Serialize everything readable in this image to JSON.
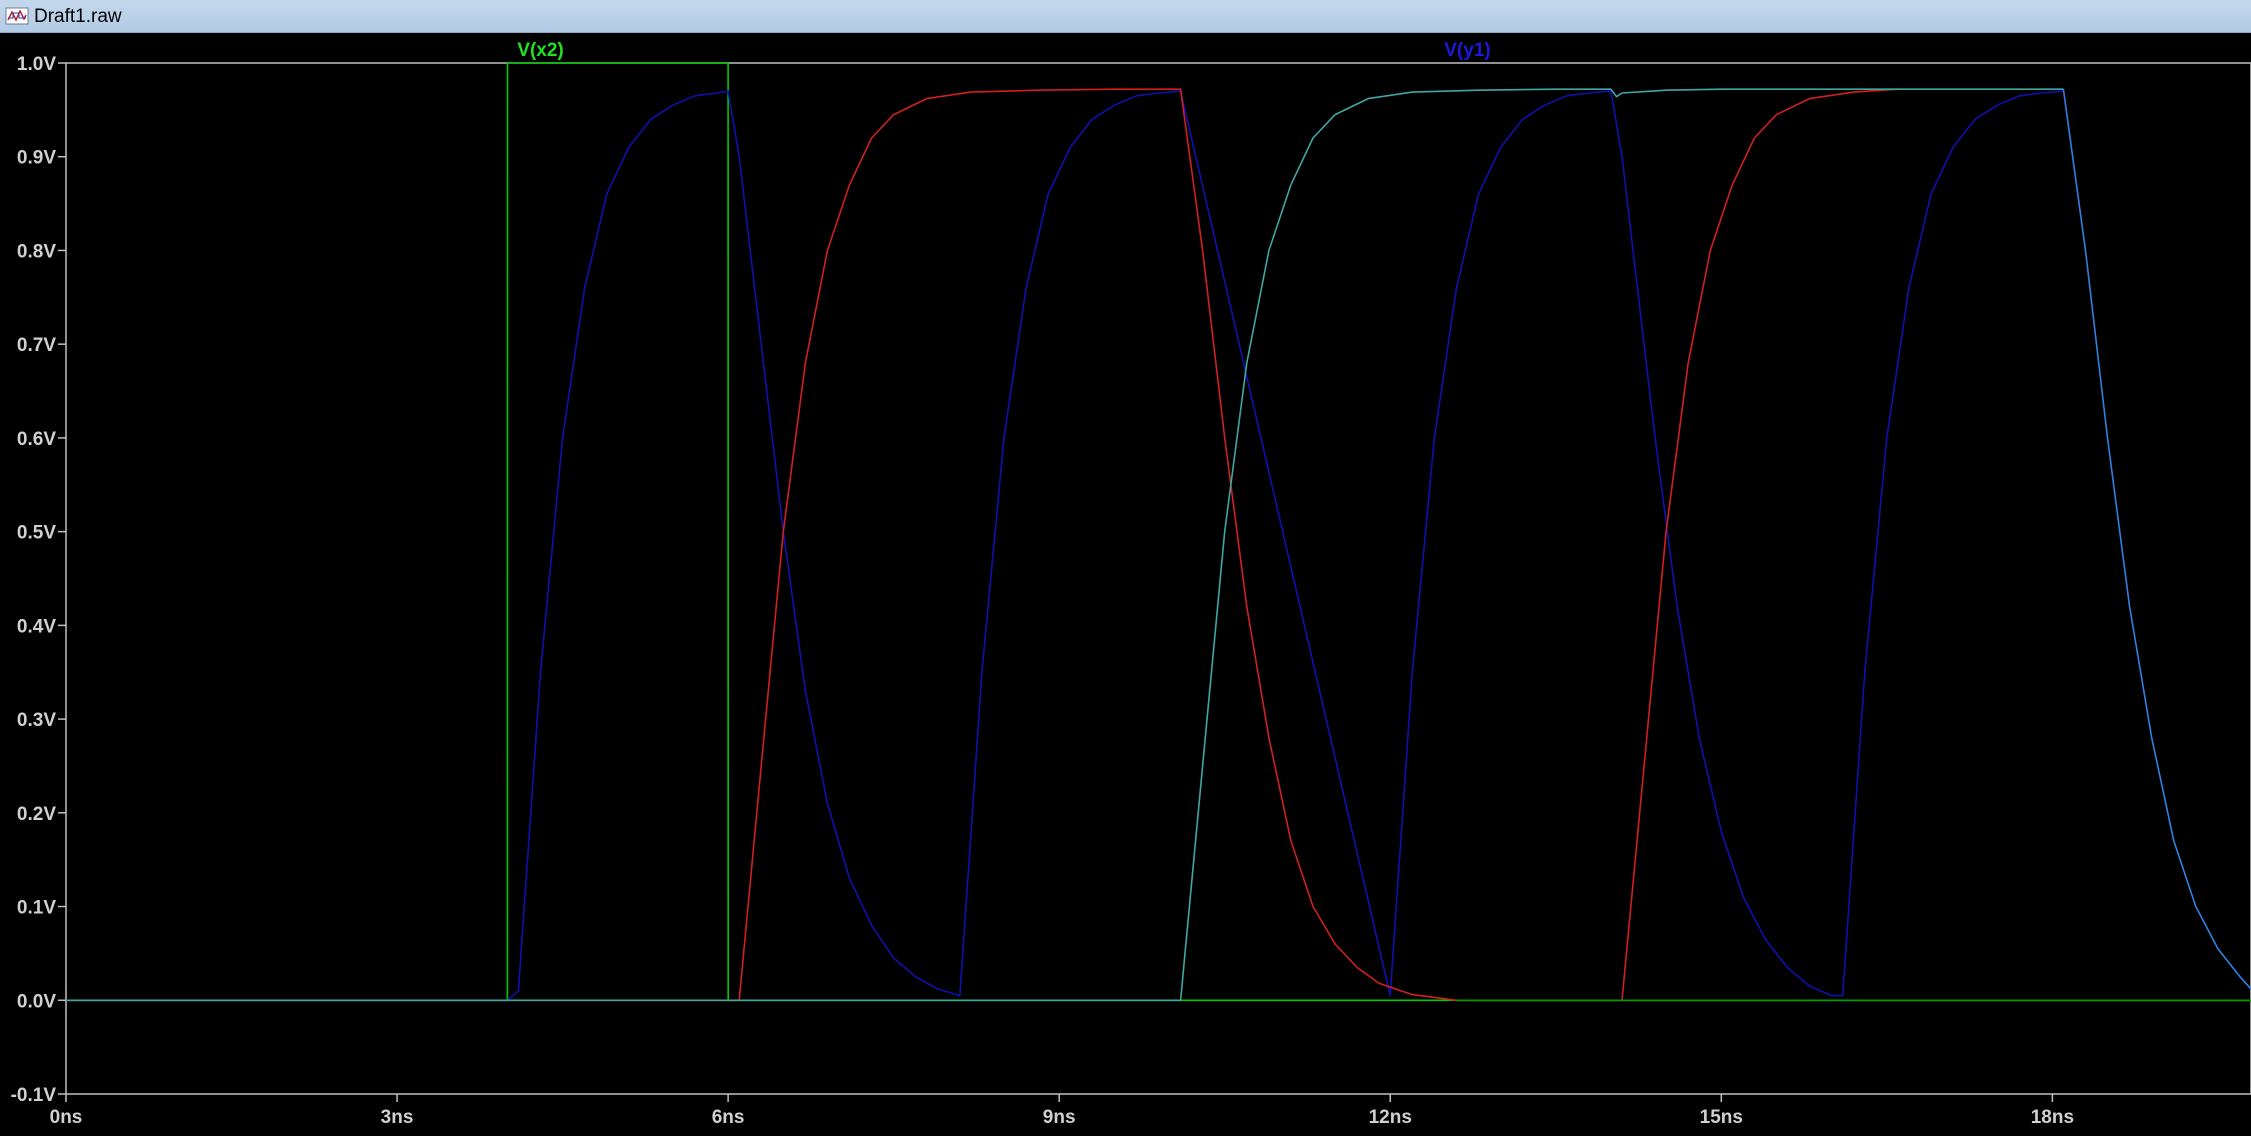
{
  "window": {
    "title": "Draft1.raw",
    "icon": "waveform-icon"
  },
  "chart_data": {
    "type": "line",
    "xlabel": "",
    "ylabel": "",
    "x_unit": "ns",
    "y_unit": "V",
    "xlim": [
      0,
      19.8
    ],
    "ylim": [
      -0.1,
      1.0
    ],
    "xticks": [
      0,
      3,
      6,
      9,
      12,
      15,
      18
    ],
    "xtick_labels": [
      "0ns",
      "3ns",
      "6ns",
      "9ns",
      "12ns",
      "15ns",
      "18ns"
    ],
    "yticks": [
      1.0,
      0.9,
      0.8,
      0.7,
      0.6,
      0.5,
      0.4,
      0.3,
      0.2,
      0.1,
      0.0,
      -0.1
    ],
    "ytick_labels": [
      "1.0V",
      "0.9V",
      "0.8V",
      "0.7V",
      "0.6V",
      "0.5V",
      "0.4V",
      "0.3V",
      "0.2V",
      "0.1V",
      "0.0V",
      "-0.1V"
    ],
    "grid": false,
    "background": "#000000",
    "axis_color": "#c0c0c0",
    "legend": "top",
    "series": [
      {
        "name": "V(x2)",
        "color": "#00c800",
        "label_x": 4.3,
        "x": [
          0,
          4.0,
          4.001,
          6.0,
          6.001,
          19.8
        ],
        "values": [
          0,
          0,
          1.0,
          1.0,
          0,
          0
        ]
      },
      {
        "name": "V(y1)",
        "color": "#1010b0",
        "label_x": 12.7,
        "x": [
          0,
          4.0,
          4.1,
          4.3,
          4.5,
          4.7,
          4.9,
          5.1,
          5.3,
          5.5,
          5.7,
          5.9,
          6.0,
          6.1,
          6.3,
          6.5,
          6.7,
          6.9,
          7.1,
          7.3,
          7.5,
          7.7,
          7.9,
          8.1,
          8.3,
          8.5,
          8.7,
          8.9,
          9.1,
          9.3,
          9.5,
          9.7,
          9.9,
          10.1,
          12.0,
          12.2,
          12.4,
          12.6,
          12.8,
          13.0,
          13.2,
          13.4,
          13.6,
          13.8,
          14.0,
          14.1,
          14.2,
          14.4,
          14.6,
          14.8,
          15.0,
          15.2,
          15.4,
          15.6,
          15.8,
          16.0,
          16.1,
          16.3,
          16.5,
          16.7,
          16.9,
          17.1,
          17.3,
          17.5,
          17.7,
          17.9,
          18.1
        ],
        "values": [
          0,
          0,
          0.01,
          0.35,
          0.6,
          0.76,
          0.86,
          0.91,
          0.94,
          0.955,
          0.965,
          0.968,
          0.97,
          0.9,
          0.7,
          0.5,
          0.33,
          0.21,
          0.13,
          0.08,
          0.045,
          0.025,
          0.012,
          0.005,
          0.35,
          0.6,
          0.76,
          0.86,
          0.91,
          0.94,
          0.955,
          0.965,
          0.968,
          0.97,
          0.005,
          0.35,
          0.6,
          0.76,
          0.86,
          0.91,
          0.94,
          0.955,
          0.965,
          0.968,
          0.97,
          0.9,
          0.8,
          0.6,
          0.42,
          0.28,
          0.18,
          0.11,
          0.065,
          0.035,
          0.015,
          0.005,
          0.005,
          0.35,
          0.6,
          0.76,
          0.86,
          0.91,
          0.94,
          0.955,
          0.965,
          0.968,
          0.97
        ]
      },
      {
        "color": "#d02020",
        "x": [
          0,
          6.0,
          6.1,
          6.3,
          6.5,
          6.7,
          6.9,
          7.1,
          7.3,
          7.5,
          7.8,
          8.2,
          8.8,
          9.5,
          10.1,
          10.3,
          10.5,
          10.7,
          10.9,
          11.1,
          11.3,
          11.5,
          11.7,
          11.9,
          12.2,
          12.6,
          14.0,
          14.1,
          14.3,
          14.5,
          14.7,
          14.9,
          15.1,
          15.3,
          15.5,
          15.8,
          16.2,
          16.6
        ],
        "values": [
          0,
          0,
          0.0,
          0.25,
          0.5,
          0.68,
          0.8,
          0.87,
          0.92,
          0.945,
          0.962,
          0.969,
          0.971,
          0.972,
          0.972,
          0.8,
          0.6,
          0.42,
          0.28,
          0.17,
          0.1,
          0.06,
          0.035,
          0.018,
          0.006,
          0.0,
          0.0,
          0.0,
          0.25,
          0.5,
          0.68,
          0.8,
          0.87,
          0.92,
          0.945,
          0.962,
          0.969,
          0.972
        ]
      },
      {
        "color": "#40a8a0",
        "x": [
          0,
          10.0,
          10.1,
          10.3,
          10.5,
          10.7,
          10.9,
          11.1,
          11.3,
          11.5,
          11.8,
          12.2,
          12.8,
          13.5,
          14.0,
          14.05,
          14.1,
          14.5,
          15.0,
          16.0,
          17.0,
          18.0,
          18.1
        ],
        "values": [
          0,
          0,
          0.0,
          0.25,
          0.5,
          0.68,
          0.8,
          0.87,
          0.92,
          0.945,
          0.962,
          0.969,
          0.971,
          0.972,
          0.972,
          0.964,
          0.968,
          0.971,
          0.972,
          0.972,
          0.972,
          0.972,
          0.972
        ]
      },
      {
        "color": "#3080e0",
        "x": [
          18.1,
          18.3,
          18.5,
          18.7,
          18.9,
          19.1,
          19.3,
          19.5,
          19.7,
          19.8
        ],
        "values": [
          0.972,
          0.8,
          0.6,
          0.42,
          0.28,
          0.17,
          0.1,
          0.055,
          0.025,
          0.012
        ]
      },
      {
        "color": "#00a000",
        "x": [
          12.6,
          19.8
        ],
        "values": [
          0,
          0
        ]
      }
    ]
  }
}
